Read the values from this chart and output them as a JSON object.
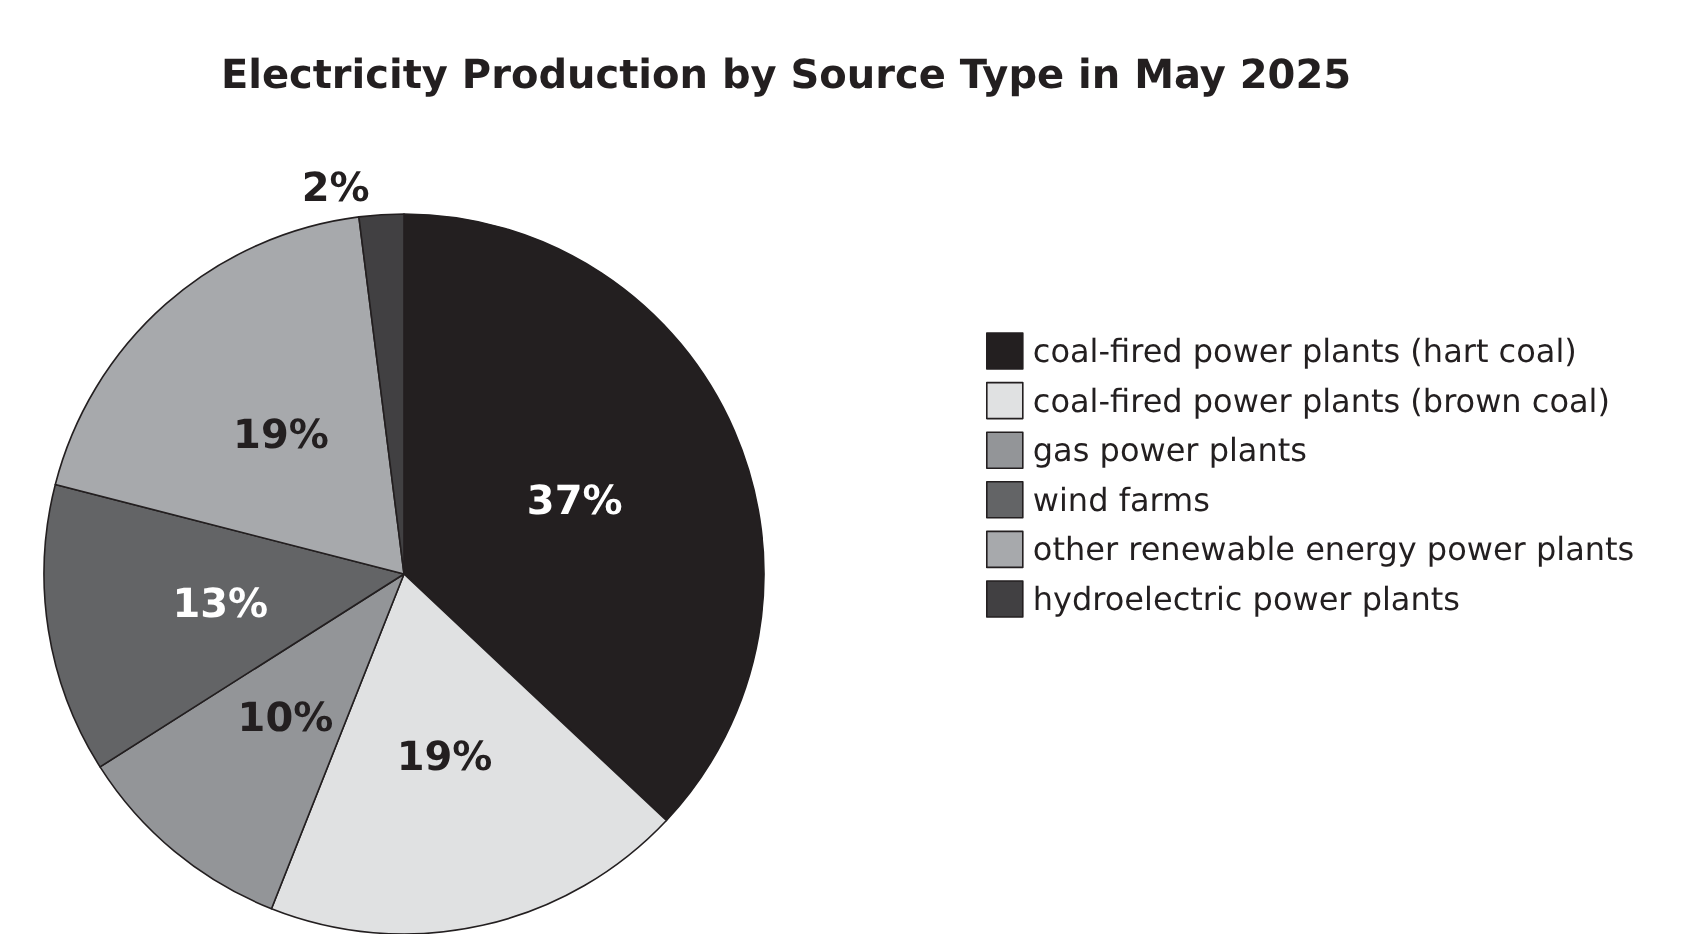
{
  "chart_data": {
    "type": "pie",
    "title": "Electricity Production by Source Type in May 2025",
    "categories": [
      "coal-fired power plants (hart coal)",
      "coal-fired power plants (brown coal)",
      "gas power plants",
      "wind farms",
      "other renewable energy power plants",
      "hydroelectric power plants"
    ],
    "values": [
      37,
      19,
      10,
      13,
      19,
      2
    ],
    "colors": [
      "#231f20",
      "#e0e1e2",
      "#939598",
      "#636466",
      "#a7a9ac",
      "#414042"
    ],
    "value_labels": [
      "37%",
      "19%",
      "10%",
      "13%",
      "19%",
      "2%"
    ],
    "legend": "right"
  }
}
